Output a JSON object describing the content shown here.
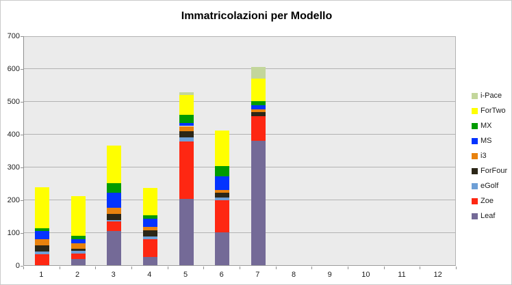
{
  "title": "Immatricolazioni per Modello",
  "chart_data": {
    "type": "bar",
    "stacked": true,
    "title": "Immatricolazioni per Modello",
    "xlabel": "",
    "ylabel": "",
    "categories": [
      "1",
      "2",
      "3",
      "4",
      "5",
      "6",
      "7",
      "8",
      "9",
      "10",
      "11",
      "12"
    ],
    "series": [
      {
        "name": "Leaf",
        "color": "#746a97",
        "values": [
          0,
          19,
          105,
          25,
          203,
          100,
          380,
          0,
          0,
          0,
          0,
          0
        ]
      },
      {
        "name": "Zoe",
        "color": "#fe2712",
        "values": [
          33,
          17,
          28,
          54,
          175,
          98,
          75,
          0,
          0,
          0,
          0,
          0
        ]
      },
      {
        "name": "eGolf",
        "color": "#6e9fd6",
        "values": [
          8,
          8,
          5,
          8,
          12,
          8,
          0,
          0,
          0,
          0,
          0,
          0
        ]
      },
      {
        "name": "ForFour",
        "color": "#2b2617",
        "values": [
          19,
          6,
          19,
          20,
          19,
          14,
          12,
          0,
          0,
          0,
          0,
          0
        ]
      },
      {
        "name": "i3",
        "color": "#e8820e",
        "values": [
          19,
          17,
          17,
          10,
          15,
          10,
          8,
          0,
          0,
          0,
          0,
          0
        ]
      },
      {
        "name": "MS",
        "color": "#0433ff",
        "values": [
          25,
          12,
          46,
          25,
          9,
          40,
          13,
          0,
          0,
          0,
          0,
          0
        ]
      },
      {
        "name": "MX",
        "color": "#009b00",
        "values": [
          8,
          10,
          31,
          10,
          25,
          33,
          12,
          0,
          0,
          0,
          0,
          0
        ]
      },
      {
        "name": "ForTwo",
        "color": "#ffff00",
        "values": [
          125,
          121,
          113,
          83,
          61,
          107,
          68,
          0,
          0,
          0,
          0,
          0
        ]
      },
      {
        "name": "i-Pace",
        "color": "#c3d69b",
        "values": [
          0,
          0,
          0,
          0,
          8,
          0,
          37,
          0,
          0,
          0,
          0,
          0
        ]
      }
    ],
    "totals": [
      237,
      210,
      364,
      235,
      527,
      410,
      605,
      0,
      0,
      0,
      0,
      0
    ],
    "ylim": [
      0,
      700
    ],
    "yticks": [
      0,
      100,
      200,
      300,
      400,
      500,
      600,
      700
    ],
    "grid": true,
    "legend_position": "right",
    "legend_order_top_to_bottom": [
      "i-Pace",
      "ForTwo",
      "MX",
      "MS",
      "i3",
      "ForFour",
      "eGolf",
      "Zoe",
      "Leaf"
    ],
    "plot_background": "#ebebeb",
    "gridline_color": "#b2b2b2"
  }
}
